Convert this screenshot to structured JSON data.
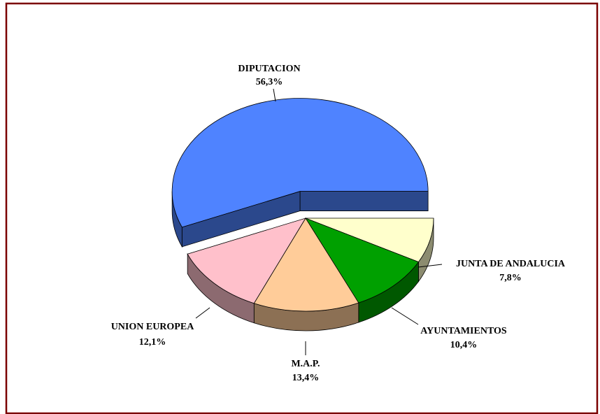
{
  "chart_data": {
    "type": "pie3d",
    "categories": [
      "JUNTA DE ANDALUCIA",
      "AYUNTAMIENTOS",
      "M.A.P.",
      "UNION EUROPEA",
      "DIPUTACION"
    ],
    "values": [
      7.8,
      10.4,
      13.4,
      12.1,
      56.3
    ],
    "value_labels": [
      "7,8%",
      "10,4%",
      "13,4%",
      "12,1%",
      "56,3%"
    ],
    "colors": [
      "#ffffcc",
      "#00a000",
      "#ffcc99",
      "#ffc0cb",
      "#4f83ff"
    ],
    "explode": [
      false,
      false,
      false,
      false,
      true
    ]
  }
}
